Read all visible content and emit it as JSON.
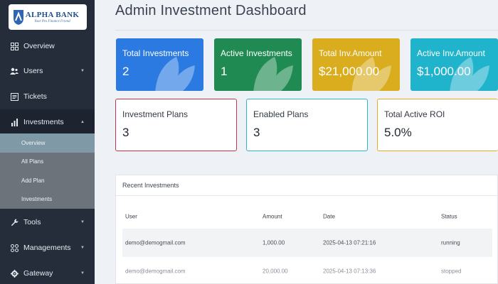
{
  "brand": {
    "name": "ALPHA BANK",
    "tagline": "Your Pro Finance Friend"
  },
  "sidebar": {
    "items": [
      {
        "label": "Overview",
        "icon": "grid-icon"
      },
      {
        "label": "Users",
        "icon": "users-icon"
      },
      {
        "label": "Tickets",
        "icon": "ticket-icon"
      },
      {
        "label": "Investments",
        "icon": "bar-chart-icon"
      },
      {
        "label": "Tools",
        "icon": "wrench-icon"
      },
      {
        "label": "Managements",
        "icon": "nodes-icon"
      },
      {
        "label": "Gateway",
        "icon": "cog-icon"
      }
    ],
    "investments_sub": [
      {
        "label": "Overview"
      },
      {
        "label": "All Plans"
      },
      {
        "label": "Add Plan"
      },
      {
        "label": "Investments"
      }
    ]
  },
  "page": {
    "title": "Admin Investment Dashboard"
  },
  "cards": [
    {
      "label": "Total Investments",
      "value": "2",
      "color": "#2a7ae2"
    },
    {
      "label": "Active Investments",
      "value": "1",
      "color": "#1f8b52"
    },
    {
      "label": "Total Inv.Amount",
      "value": "$21,000.00",
      "color": "#d9ad1e"
    },
    {
      "label": "Active Inv.Amount",
      "value": "$1,000.00",
      "color": "#1fb3cc"
    }
  ],
  "stats": [
    {
      "label": "Investment Plans",
      "value": "3",
      "border": "#c8324a"
    },
    {
      "label": "Enabled Plans",
      "value": "3",
      "border": "#28b6c8"
    },
    {
      "label": "Total Active ROI",
      "value": "5.0%",
      "border": "#e3ad1a"
    }
  ],
  "recent": {
    "title": "Recent Investments",
    "columns": [
      "User",
      "Amount",
      "Date",
      "Status"
    ],
    "rows": [
      {
        "user": "demo@demogmail.com",
        "amount": "1,000.00",
        "date": "2025-04-13 07:21:16",
        "status": "running"
      },
      {
        "user": "demo@demogmail.com",
        "amount": "20,000.00",
        "date": "2025-04-13 07:13:36",
        "status": "stopped"
      }
    ]
  }
}
